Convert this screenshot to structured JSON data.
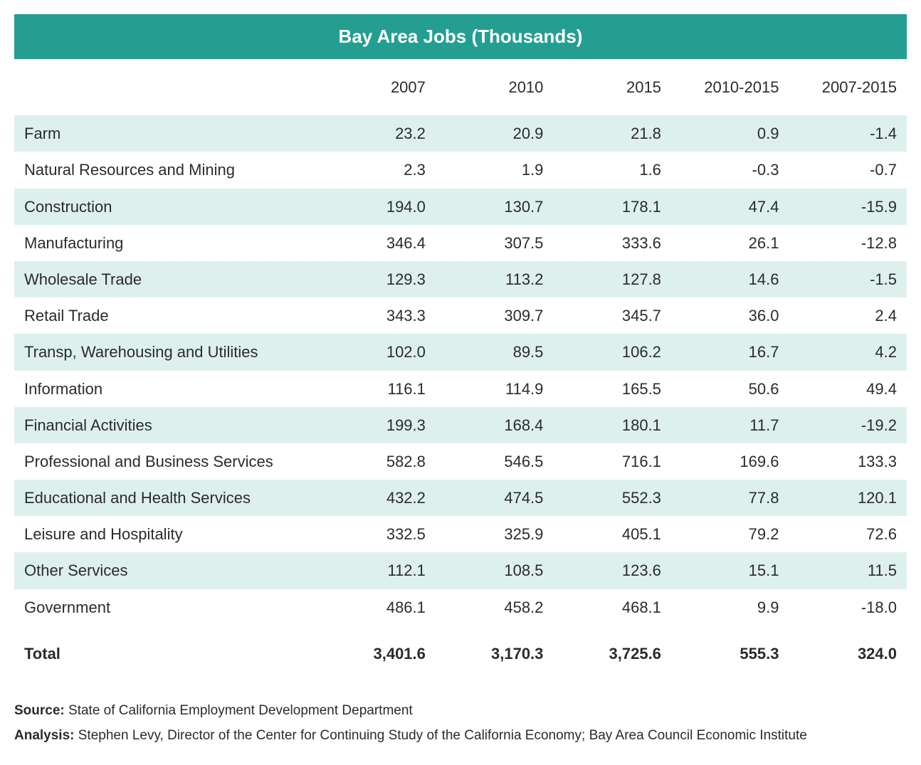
{
  "title": "Bay Area Jobs (Thousands)",
  "columns": [
    "2007",
    "2010",
    "2015",
    "2010-2015",
    "2007-2015"
  ],
  "rows": [
    {
      "sector": "Farm",
      "vals": [
        "23.2",
        "20.9",
        "21.8",
        "0.9",
        "-1.4"
      ]
    },
    {
      "sector": "Natural Resources and Mining",
      "vals": [
        "2.3",
        "1.9",
        "1.6",
        "-0.3",
        "-0.7"
      ]
    },
    {
      "sector": "Construction",
      "vals": [
        "194.0",
        "130.7",
        "178.1",
        "47.4",
        "-15.9"
      ]
    },
    {
      "sector": "Manufacturing",
      "vals": [
        "346.4",
        "307.5",
        "333.6",
        "26.1",
        "-12.8"
      ]
    },
    {
      "sector": "Wholesale Trade",
      "vals": [
        "129.3",
        "113.2",
        "127.8",
        "14.6",
        "-1.5"
      ]
    },
    {
      "sector": "Retail Trade",
      "vals": [
        "343.3",
        "309.7",
        "345.7",
        "36.0",
        "2.4"
      ]
    },
    {
      "sector": "Transp, Warehousing and Utilities",
      "vals": [
        "102.0",
        "89.5",
        "106.2",
        "16.7",
        "4.2"
      ]
    },
    {
      "sector": "Information",
      "vals": [
        "116.1",
        "114.9",
        "165.5",
        "50.6",
        "49.4"
      ]
    },
    {
      "sector": "Financial Activities",
      "vals": [
        "199.3",
        "168.4",
        "180.1",
        "11.7",
        "-19.2"
      ]
    },
    {
      "sector": "Professional and Business Services",
      "vals": [
        "582.8",
        "546.5",
        "716.1",
        "169.6",
        "133.3"
      ]
    },
    {
      "sector": "Educational and Health Services",
      "vals": [
        "432.2",
        "474.5",
        "552.3",
        "77.8",
        "120.1"
      ]
    },
    {
      "sector": "Leisure and Hospitality",
      "vals": [
        "332.5",
        "325.9",
        "405.1",
        "79.2",
        "72.6"
      ]
    },
    {
      "sector": "Other Services",
      "vals": [
        "112.1",
        "108.5",
        "123.6",
        "15.1",
        "11.5"
      ]
    },
    {
      "sector": "Government",
      "vals": [
        "486.1",
        "458.2",
        "468.1",
        "9.9",
        "-18.0"
      ]
    }
  ],
  "total": {
    "sector": "Total",
    "vals": [
      "3,401.6",
      "3,170.3",
      "3,725.6",
      "555.3",
      "324.0"
    ]
  },
  "footnotes": {
    "source_label": "Source:",
    "source_text": " State of California Employment Development Department",
    "analysis_label": "Analysis:",
    "analysis_text": " Stephen Levy, Director of the Center for Continuing Study of the California Economy; Bay Area Council Economic Institute"
  },
  "style": {
    "title_bg": "#239e91",
    "title_color": "#ffffff",
    "stripe_bg": "#def0ed",
    "text_color": "#2b2b2b",
    "font_size_body": 22,
    "font_size_title": 26,
    "font_size_footnote": 19
  }
}
